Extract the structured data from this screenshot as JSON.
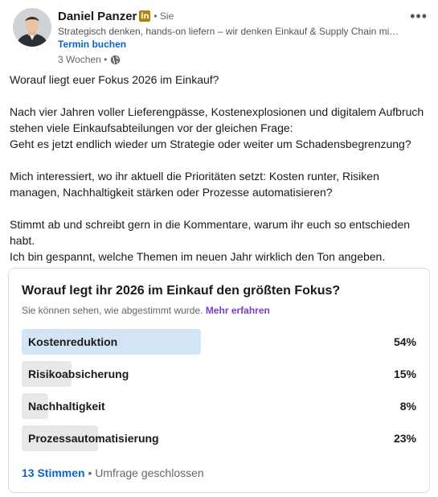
{
  "post": {
    "author_name": "Daniel Panzer",
    "linkedin_badge": "in",
    "relation": "• Sie",
    "headline": "Strategisch denken, hands-on liefern – wir denken Einkauf & Supply Chain mit…",
    "cta": "Termin buchen",
    "time": "3 Wochen •",
    "more_label": "•••",
    "text": "Worauf liegt euer Fokus 2026 im Einkauf?\n\nNach vier Jahren voller Lieferengpässe, Kostenexplosionen und digitalem Aufbruch stehen viele Einkaufsabteilungen vor der gleichen Frage:\nGeht es jetzt endlich wieder um Strategie oder weiter um Schadensbegrenzung?\n\nMich interessiert, wo ihr aktuell die Prioritäten setzt: Kosten runter, Risiken managen, Nachhaltigkeit stärken oder Prozesse automatisieren?\n\nStimmt ab und schreibt gern in die Kommentare, warum ihr euch so entschieden habt.\nIch bin gespannt, welche Themen im neuen Jahr wirklich den Ton angeben."
  },
  "poll": {
    "question": "Worauf legt ihr 2026 im Einkauf den größten Fokus?",
    "note": "Sie können sehen, wie abgestimmt wurde.",
    "note_link": "Mehr erfahren",
    "options": [
      {
        "label": "Kostenreduktion",
        "percent_label": "54%",
        "value": 54,
        "selected": true
      },
      {
        "label": "Risikoabsicherung",
        "percent_label": "15%",
        "value": 15,
        "selected": false
      },
      {
        "label": "Nachhaltigkeit",
        "percent_label": "8%",
        "value": 8,
        "selected": false
      },
      {
        "label": "Prozessautomatisierung",
        "percent_label": "23%",
        "value": 23,
        "selected": false
      }
    ],
    "votes": "13 Stimmen",
    "status": " • Umfrage geschlossen"
  },
  "colors": {
    "link_blue": "#0a66c2",
    "selected_bar": "#d4e4f7",
    "bar": "#e8e8e8",
    "premium_gold": "#b5810d"
  }
}
